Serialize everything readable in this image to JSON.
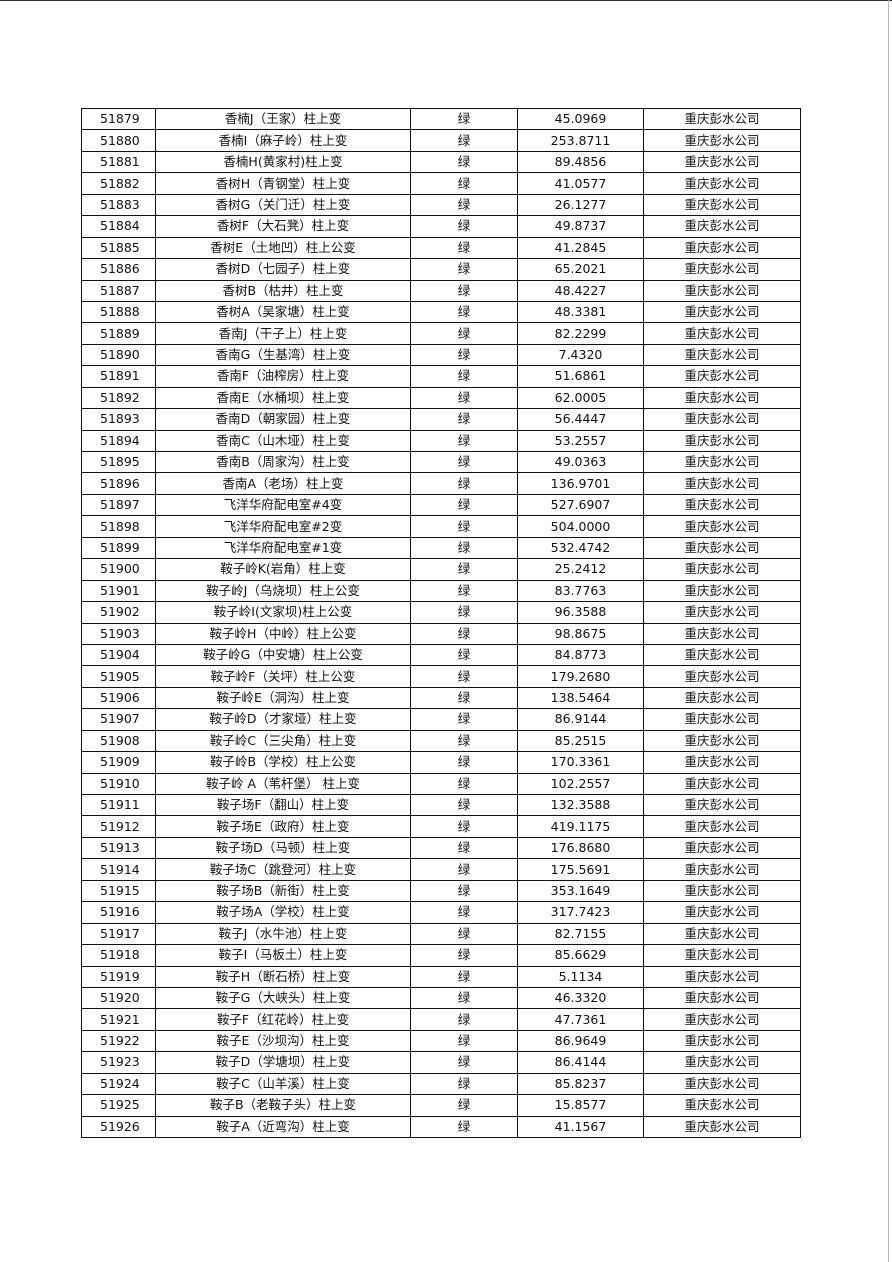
{
  "table": {
    "rows": [
      [
        "51879",
        "香楠J（王家）柱上变",
        "绿",
        "45.0969",
        "重庆彭水公司"
      ],
      [
        "51880",
        "香楠I（麻子岭）柱上变",
        "绿",
        "253.8711",
        "重庆彭水公司"
      ],
      [
        "51881",
        "香楠H(黄家村)柱上变",
        "绿",
        "89.4856",
        "重庆彭水公司"
      ],
      [
        "51882",
        "香树H（青钢堂）柱上变",
        "绿",
        "41.0577",
        "重庆彭水公司"
      ],
      [
        "51883",
        "香树G（关门迁）柱上变",
        "绿",
        "26.1277",
        "重庆彭水公司"
      ],
      [
        "51884",
        "香树F（大石凳）柱上变",
        "绿",
        "49.8737",
        "重庆彭水公司"
      ],
      [
        "51885",
        "香树E（土地凹）柱上公变",
        "绿",
        "41.2845",
        "重庆彭水公司"
      ],
      [
        "51886",
        "香树D（七园子）柱上变",
        "绿",
        "65.2021",
        "重庆彭水公司"
      ],
      [
        "51887",
        "香树B（枯井）柱上变",
        "绿",
        "48.4227",
        "重庆彭水公司"
      ],
      [
        "51888",
        "香树A（吴家塘）柱上变",
        "绿",
        "48.3381",
        "重庆彭水公司"
      ],
      [
        "51889",
        "香南J（干子上）柱上变",
        "绿",
        "82.2299",
        "重庆彭水公司"
      ],
      [
        "51890",
        "香南G（生基湾）柱上变",
        "绿",
        "7.4320",
        "重庆彭水公司"
      ],
      [
        "51891",
        "香南F（油榨房）柱上变",
        "绿",
        "51.6861",
        "重庆彭水公司"
      ],
      [
        "51892",
        "香南E（水桶坝）柱上变",
        "绿",
        "62.0005",
        "重庆彭水公司"
      ],
      [
        "51893",
        "香南D（朝家园）柱上变",
        "绿",
        "56.4447",
        "重庆彭水公司"
      ],
      [
        "51894",
        "香南C（山木垭）柱上变",
        "绿",
        "53.2557",
        "重庆彭水公司"
      ],
      [
        "51895",
        "香南B（周家沟）柱上变",
        "绿",
        "49.0363",
        "重庆彭水公司"
      ],
      [
        "51896",
        "香南A（老场）柱上变",
        "绿",
        "136.9701",
        "重庆彭水公司"
      ],
      [
        "51897",
        "飞洋华府配电室#4变",
        "绿",
        "527.6907",
        "重庆彭水公司"
      ],
      [
        "51898",
        "飞洋华府配电室#2变",
        "绿",
        "504.0000",
        "重庆彭水公司"
      ],
      [
        "51899",
        "飞洋华府配电室#1变",
        "绿",
        "532.4742",
        "重庆彭水公司"
      ],
      [
        "51900",
        "鞍子岭K(岩角）柱上变",
        "绿",
        "25.2412",
        "重庆彭水公司"
      ],
      [
        "51901",
        "鞍子岭J（乌烧坝）柱上公变",
        "绿",
        "83.7763",
        "重庆彭水公司"
      ],
      [
        "51902",
        "鞍子岭I(文家坝)柱上公变",
        "绿",
        "96.3588",
        "重庆彭水公司"
      ],
      [
        "51903",
        "鞍子岭H（中岭）柱上公变",
        "绿",
        "98.8675",
        "重庆彭水公司"
      ],
      [
        "51904",
        "鞍子岭G（中安塘）柱上公变",
        "绿",
        "84.8773",
        "重庆彭水公司"
      ],
      [
        "51905",
        "鞍子岭F（关坪）柱上公变",
        "绿",
        "179.2680",
        "重庆彭水公司"
      ],
      [
        "51906",
        "鞍子岭E（洞沟）柱上变",
        "绿",
        "138.5464",
        "重庆彭水公司"
      ],
      [
        "51907",
        "鞍子岭D（才家垭）柱上变",
        "绿",
        "86.9144",
        "重庆彭水公司"
      ],
      [
        "51908",
        "鞍子岭C（三尖角）柱上变",
        "绿",
        "85.2515",
        "重庆彭水公司"
      ],
      [
        "51909",
        "鞍子岭B（学校）柱上公变",
        "绿",
        "170.3361",
        "重庆彭水公司"
      ],
      [
        "51910",
        "鞍子岭 A（苇杆堡） 柱上变",
        "绿",
        "102.2557",
        "重庆彭水公司"
      ],
      [
        "51911",
        "鞍子场F（翻山）柱上变",
        "绿",
        "132.3588",
        "重庆彭水公司"
      ],
      [
        "51912",
        "鞍子场E（政府）柱上变",
        "绿",
        "419.1175",
        "重庆彭水公司"
      ],
      [
        "51913",
        "鞍子场D（马顿）柱上变",
        "绿",
        "176.8680",
        "重庆彭水公司"
      ],
      [
        "51914",
        "鞍子场C（跳登河）柱上变",
        "绿",
        "175.5691",
        "重庆彭水公司"
      ],
      [
        "51915",
        "鞍子场B（新街）柱上变",
        "绿",
        "353.1649",
        "重庆彭水公司"
      ],
      [
        "51916",
        "鞍子场A（学校）柱上变",
        "绿",
        "317.7423",
        "重庆彭水公司"
      ],
      [
        "51917",
        "鞍子J（水牛池）柱上变",
        "绿",
        "82.7155",
        "重庆彭水公司"
      ],
      [
        "51918",
        "鞍子I（马板土）柱上变",
        "绿",
        "85.6629",
        "重庆彭水公司"
      ],
      [
        "51919",
        "鞍子H（断石桥）柱上变",
        "绿",
        "5.1134",
        "重庆彭水公司"
      ],
      [
        "51920",
        "鞍子G（大峡头）柱上变",
        "绿",
        "46.3320",
        "重庆彭水公司"
      ],
      [
        "51921",
        "鞍子F（红花岭）柱上变",
        "绿",
        "47.7361",
        "重庆彭水公司"
      ],
      [
        "51922",
        "鞍子E（沙坝沟）柱上变",
        "绿",
        "86.9649",
        "重庆彭水公司"
      ],
      [
        "51923",
        "鞍子D（学塘坝）柱上变",
        "绿",
        "86.4144",
        "重庆彭水公司"
      ],
      [
        "51924",
        "鞍子C（山羊溪）柱上变",
        "绿",
        "85.8237",
        "重庆彭水公司"
      ],
      [
        "51925",
        "鞍子B（老鞍子头）柱上变",
        "绿",
        "15.8577",
        "重庆彭水公司"
      ],
      [
        "51926",
        "鞍子A（近弯沟）柱上变",
        "绿",
        "41.1567",
        "重庆彭水公司"
      ]
    ]
  }
}
